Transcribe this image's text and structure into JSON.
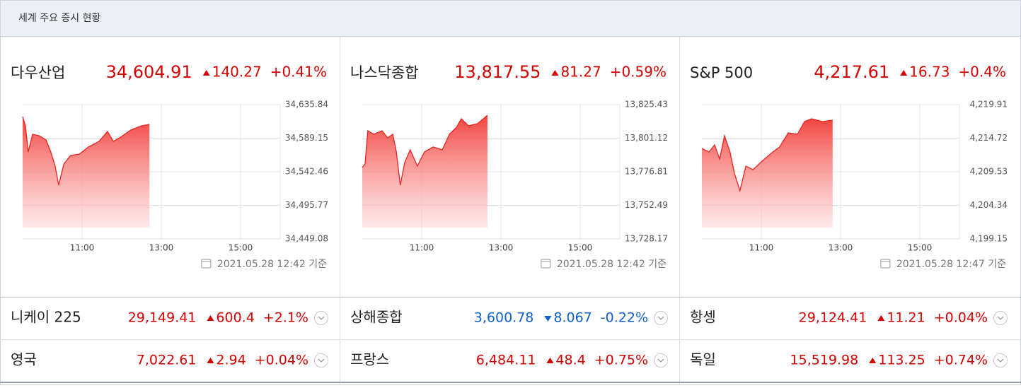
{
  "header": {
    "title": "세계 주요 증시 현황"
  },
  "panels": [
    {
      "name": "다우산업",
      "price": "34,604.91",
      "change": "140.27",
      "change_pct": "+0.41%",
      "direction": "up",
      "timestamp": "2021.05.28 12:42 기준",
      "chart": {
        "type": "area",
        "color": "#e8231f",
        "x": [
          9.5,
          9.57,
          9.64,
          9.75,
          9.91,
          10.09,
          10.21,
          10.32,
          10.41,
          10.54,
          10.71,
          10.93,
          11.16,
          11.43,
          11.64,
          11.79,
          12.0,
          12.23,
          12.5,
          12.7
        ],
        "values": [
          34619.13,
          34606.35,
          34569.98,
          34594.55,
          34592.59,
          34586.69,
          34569.98,
          34550.32,
          34523.78,
          34553.27,
          34565.06,
          34567.03,
          34576.86,
          34584.72,
          34598.49,
          34584.72,
          34591.6,
          34600.45,
          34606.35,
          34608.32
        ],
        "xlim": [
          9.5,
          16
        ],
        "ylim": [
          34449.08,
          34635.84
        ],
        "xticks": [
          {
            "value": 11,
            "label": "11:00"
          },
          {
            "value": 13,
            "label": "13:00"
          },
          {
            "value": 15,
            "label": "15:00"
          }
        ],
        "yticks": [
          {
            "value": 34449.08,
            "label": "34,449.08"
          },
          {
            "value": 34495.77,
            "label": "34,495.77"
          },
          {
            "value": 34542.46,
            "label": "34,542.46"
          },
          {
            "value": 34589.15,
            "label": "34,589.15"
          },
          {
            "value": 34635.84,
            "label": "34,635.84"
          }
        ]
      }
    },
    {
      "name": "나스닥종합",
      "price": "13,817.55",
      "change": "81.27",
      "change_pct": "+0.59%",
      "direction": "up",
      "timestamp": "2021.05.28 12:42 기준",
      "chart": {
        "type": "area",
        "color": "#e8231f",
        "x": [
          9.5,
          9.57,
          9.64,
          9.79,
          10.0,
          10.14,
          10.27,
          10.36,
          10.46,
          10.57,
          10.71,
          10.89,
          11.07,
          11.29,
          11.52,
          11.7,
          11.88,
          12.0,
          12.18,
          12.41,
          12.66
        ],
        "values": [
          13779.86,
          13782.42,
          13806.49,
          13803.93,
          13806.49,
          13801.37,
          13803.93,
          13791.13,
          13767.06,
          13783.45,
          13792.66,
          13780.89,
          13791.13,
          13794.71,
          13792.66,
          13803.93,
          13809.05,
          13815.19,
          13810.07,
          13811.61,
          13817.75
        ],
        "xlim": [
          9.5,
          16
        ],
        "ylim": [
          13728.17,
          13825.43
        ],
        "xticks": [
          {
            "value": 11,
            "label": "11:00"
          },
          {
            "value": 13,
            "label": "13:00"
          },
          {
            "value": 15,
            "label": "15:00"
          }
        ],
        "yticks": [
          {
            "value": 13728.17,
            "label": "13,728.17"
          },
          {
            "value": 13752.49,
            "label": "13,752.49"
          },
          {
            "value": 13776.81,
            "label": "13,776.81"
          },
          {
            "value": 13801.12,
            "label": "13,801.12"
          },
          {
            "value": 13825.43,
            "label": "13,825.43"
          }
        ]
      }
    },
    {
      "name": "S&P 500",
      "price": "4,217.61",
      "change": "16.73",
      "change_pct": "+0.4%",
      "direction": "up",
      "timestamp": "2021.05.28 12:47 기준",
      "chart": {
        "type": "area",
        "color": "#e8231f",
        "x": [
          9.5,
          9.68,
          9.82,
          9.95,
          10.07,
          10.21,
          10.32,
          10.46,
          10.61,
          10.79,
          11.02,
          11.29,
          11.46,
          11.68,
          11.91,
          12.09,
          12.27,
          12.54,
          12.8
        ],
        "values": [
          4213.13,
          4212.59,
          4213.68,
          4211.49,
          4215.1,
          4212.59,
          4209.31,
          4206.58,
          4210.4,
          4209.85,
          4211.17,
          4212.59,
          4213.35,
          4215.54,
          4215.32,
          4217.29,
          4217.72,
          4217.29,
          4217.51
        ],
        "xlim": [
          9.5,
          16
        ],
        "ylim": [
          4199.15,
          4219.91
        ],
        "xticks": [
          {
            "value": 11,
            "label": "11:00"
          },
          {
            "value": 13,
            "label": "13:00"
          },
          {
            "value": 15,
            "label": "15:00"
          }
        ],
        "yticks": [
          {
            "value": 4199.15,
            "label": "4,199.15"
          },
          {
            "value": 4204.34,
            "label": "4,204.34"
          },
          {
            "value": 4209.53,
            "label": "4,209.53"
          },
          {
            "value": 4214.72,
            "label": "4,214.72"
          },
          {
            "value": 4219.91,
            "label": "4,219.91"
          }
        ]
      }
    }
  ],
  "rows": [
    [
      {
        "name": "니케이 225",
        "price": "29,149.41",
        "change": "600.4",
        "change_pct": "+2.1%",
        "direction": "up"
      },
      {
        "name": "상해종합",
        "price": "3,600.78",
        "change": "8.067",
        "change_pct": "-0.22%",
        "direction": "down"
      },
      {
        "name": "항셍",
        "price": "29,124.41",
        "change": "11.21",
        "change_pct": "+0.04%",
        "direction": "up"
      }
    ],
    [
      {
        "name": "영국",
        "price": "7,022.61",
        "change": "2.94",
        "change_pct": "+0.04%",
        "direction": "up"
      },
      {
        "name": "프랑스",
        "price": "6,484.11",
        "change": "48.4",
        "change_pct": "+0.75%",
        "direction": "up"
      },
      {
        "name": "독일",
        "price": "15,519.98",
        "change": "113.25",
        "change_pct": "+0.74%",
        "direction": "up"
      }
    ]
  ]
}
